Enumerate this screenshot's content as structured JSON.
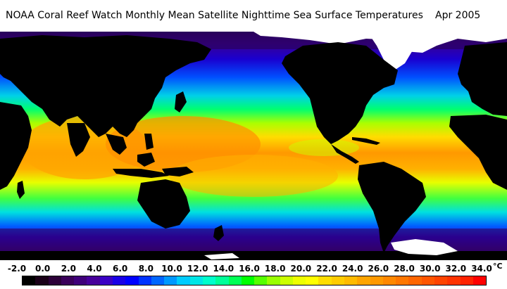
{
  "title": {
    "main": "NOAA Coral Reef Watch Monthly Mean Satellite Nighttime Sea Surface Temperatures",
    "date": "Apr 2005"
  },
  "map": {
    "land_color": "#000000",
    "ice_color": "#ffffff"
  },
  "colorbar": {
    "unit": "°C",
    "tick_labels": [
      "-2.0",
      "0.0",
      "2.0",
      "4.0",
      "6.0",
      "8.0",
      "10.0",
      "12.0",
      "14.0",
      "16.0",
      "18.0",
      "20.0",
      "22.0",
      "24.0",
      "26.0",
      "28.0",
      "30.0",
      "32.0",
      "34.0"
    ],
    "colors": [
      "#000000",
      "#1a0018",
      "#2c0038",
      "#3a005a",
      "#3f007a",
      "#47009a",
      "#3a00c4",
      "#1a00e6",
      "#0000ff",
      "#0033ff",
      "#0066ff",
      "#0099ff",
      "#00ccff",
      "#00e6e6",
      "#00ffcc",
      "#00ff99",
      "#00ff55",
      "#00ff00",
      "#55ff00",
      "#99ff00",
      "#ccff00",
      "#eeff00",
      "#ffff00",
      "#ffdd00",
      "#ffcc00",
      "#ffbb00",
      "#ffa500",
      "#ff9900",
      "#ff8800",
      "#ff7700",
      "#ff6600",
      "#ff5500",
      "#ff4400",
      "#ff3300",
      "#ff2200",
      "#ff0000"
    ]
  }
}
